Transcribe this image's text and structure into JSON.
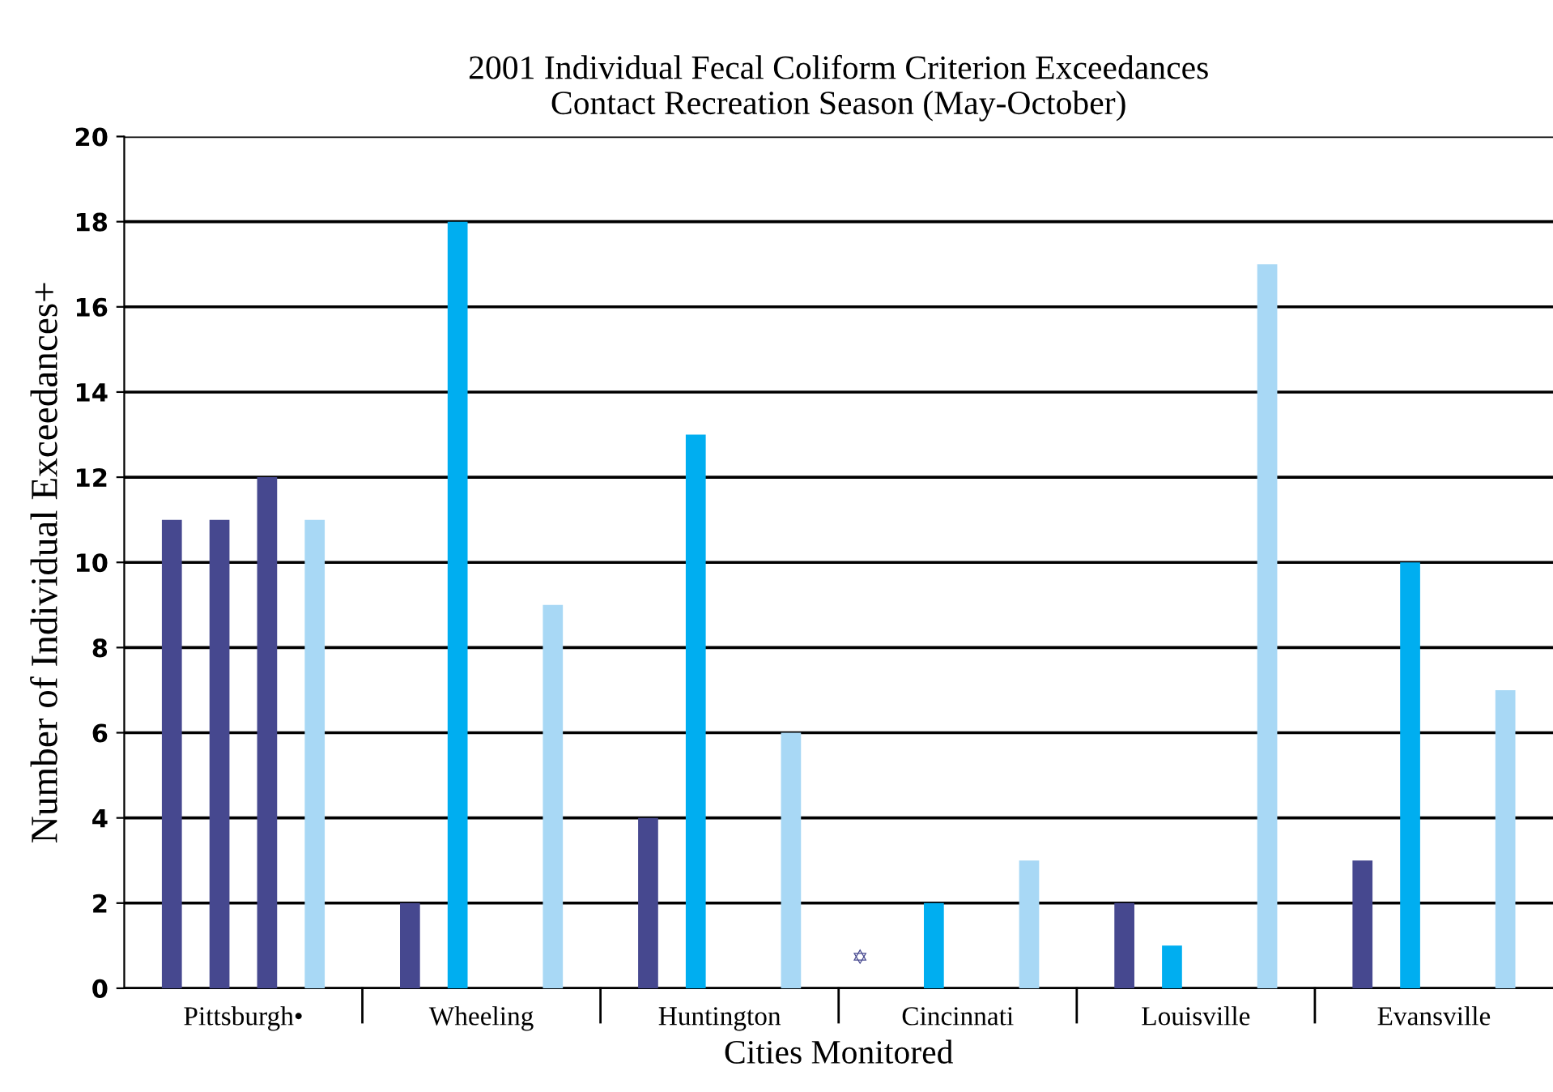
{
  "chart_data": {
    "type": "bar",
    "title": "2001 Individual Fecal Coliform Criterion Exceedances\nContact Recreation Season (May-October)",
    "xlabel": "Cities Monitored",
    "ylabel": "Number of Individual Exceedances+",
    "categories": [
      "Pittsburgh•",
      "Wheeling",
      "Huntington",
      "Cincinnati",
      "Louisville",
      "Evansville"
    ],
    "series": [
      {
        "color": "#46488f",
        "values": [
          11,
          2,
          4,
          null,
          2,
          3
        ]
      },
      {
        "colors": [
          "#46488f",
          "#00aef0",
          "#00aef0",
          "#00aef0",
          "#00aef0",
          "#00aef0"
        ],
        "values": [
          11,
          18,
          13,
          2,
          1,
          10
        ]
      },
      {
        "color": "#46488f",
        "values": [
          12,
          null,
          null,
          null,
          null,
          null
        ]
      },
      {
        "color": "#a8d8f5",
        "values": [
          11,
          9,
          6,
          3,
          17,
          7
        ]
      }
    ],
    "annotations": [
      "✡"
    ],
    "ylim": [
      0,
      20
    ],
    "yticks": [
      0,
      2,
      4,
      6,
      8,
      10,
      12,
      14,
      16,
      18,
      20
    ],
    "grid": "y",
    "legend": false
  }
}
